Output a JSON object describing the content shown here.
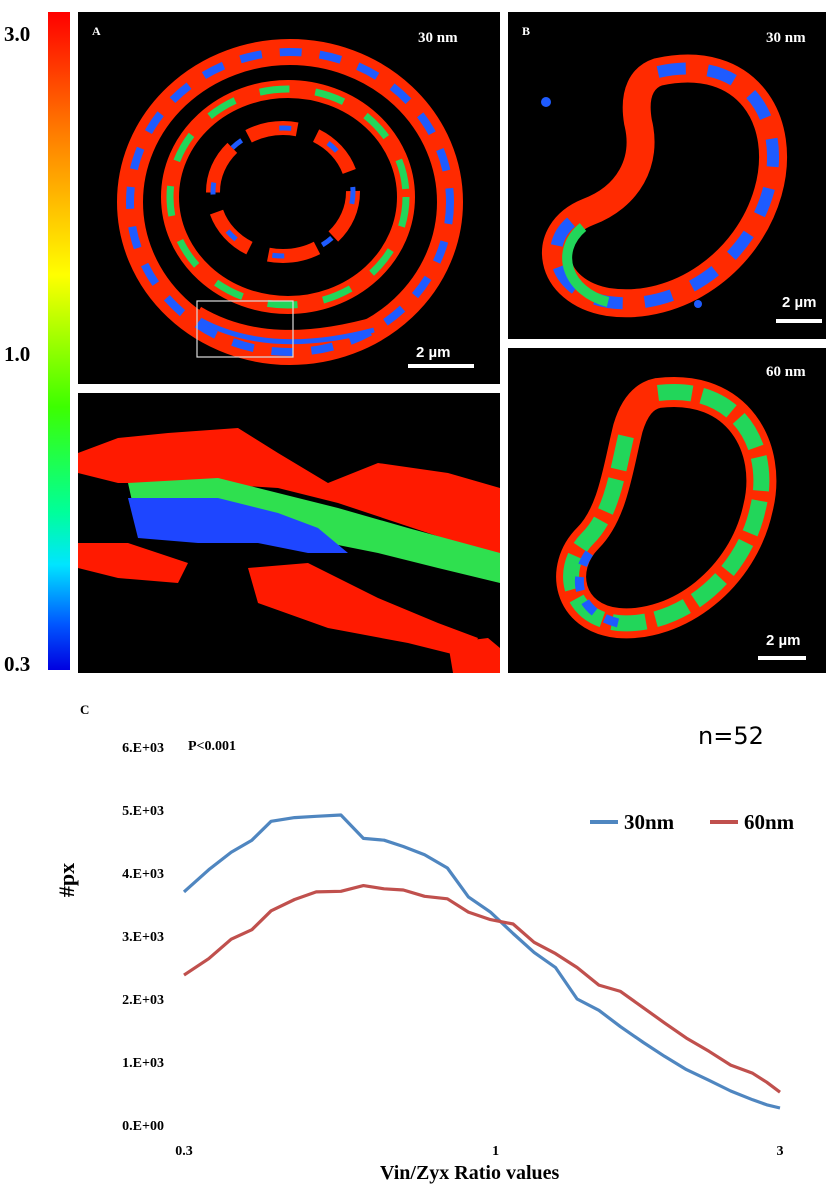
{
  "colorbar": {
    "max_label": "3.0",
    "mid_label": "1.0",
    "min_label": "0.3",
    "colors": [
      "#ff0000",
      "#ffff00",
      "#00ff00",
      "#00ffff",
      "#0000ff"
    ]
  },
  "panel_a": {
    "label": "A",
    "resolution": "30 nm",
    "scale_bar": "2 µm"
  },
  "panel_b_top": {
    "label": "B",
    "resolution": "30 nm",
    "scale_bar": "2 µm"
  },
  "panel_b_bottom": {
    "resolution": "60 nm",
    "scale_bar": "2 µm"
  },
  "panel_c": {
    "label": "C"
  },
  "chart_data": {
    "type": "line",
    "annotation": "P<0.001",
    "n_label": "n=52",
    "ylabel": "#px",
    "xlabel": "Vin/Zyx Ratio values",
    "xscale": "log",
    "xlim": [
      0.3,
      3
    ],
    "ylim": [
      0,
      6000
    ],
    "x_ticks": [
      {
        "value": 0.3,
        "label": "0.3"
      },
      {
        "value": 1,
        "label": "1"
      },
      {
        "value": 3,
        "label": "3"
      }
    ],
    "y_ticks": [
      {
        "value": 0,
        "label": "0.E+00"
      },
      {
        "value": 1000,
        "label": "1.E+03"
      },
      {
        "value": 2000,
        "label": "2.E+03"
      },
      {
        "value": 3000,
        "label": "3.E+03"
      },
      {
        "value": 4000,
        "label": "4.E+03"
      },
      {
        "value": 5000,
        "label": "5.E+03"
      },
      {
        "value": 6000,
        "label": "6.E+03"
      }
    ],
    "legend_position": "top-right",
    "series": [
      {
        "name": "30nm",
        "color": "#4f86c0",
        "x": [
          0.3,
          0.33,
          0.36,
          0.39,
          0.42,
          0.46,
          0.5,
          0.55,
          0.6,
          0.65,
          0.7,
          0.76,
          0.83,
          0.9,
          0.98,
          1.07,
          1.16,
          1.26,
          1.37,
          1.49,
          1.62,
          1.77,
          1.92,
          2.09,
          2.28,
          2.48,
          2.7,
          2.85,
          3.0
        ],
        "values": [
          3700,
          4050,
          4330,
          4520,
          4820,
          4880,
          4900,
          4920,
          4550,
          4520,
          4420,
          4290,
          4080,
          3620,
          3380,
          3040,
          2740,
          2500,
          2000,
          1820,
          1560,
          1310,
          1090,
          880,
          710,
          540,
          400,
          320,
          270
        ]
      },
      {
        "name": "60nm",
        "color": "#c0504d",
        "x": [
          0.3,
          0.33,
          0.36,
          0.39,
          0.42,
          0.46,
          0.5,
          0.55,
          0.6,
          0.65,
          0.7,
          0.76,
          0.83,
          0.9,
          0.98,
          1.07,
          1.16,
          1.26,
          1.37,
          1.49,
          1.62,
          1.77,
          1.92,
          2.09,
          2.28,
          2.48,
          2.7,
          2.85,
          3.0
        ],
        "values": [
          2380,
          2640,
          2950,
          3100,
          3400,
          3580,
          3700,
          3710,
          3800,
          3750,
          3730,
          3630,
          3590,
          3380,
          3260,
          3190,
          2900,
          2720,
          2500,
          2220,
          2120,
          1860,
          1620,
          1380,
          1170,
          950,
          820,
          680,
          520
        ]
      }
    ]
  }
}
